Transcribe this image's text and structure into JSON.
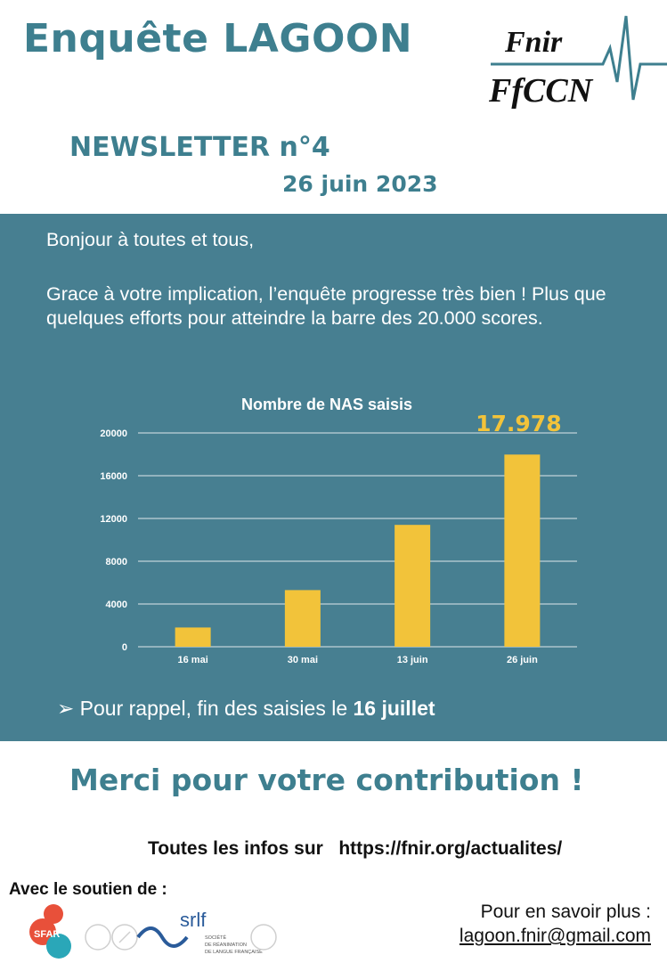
{
  "header": {
    "title": "Enquête LAGOON",
    "logo": {
      "line1": "Fnir",
      "line2": "FfCCN"
    }
  },
  "newsletter": {
    "label": "NEWSLETTER n°4",
    "date": "26 juin 2023"
  },
  "intro": {
    "greeting": "Bonjour à toutes et tous,",
    "body": "Grace à votre implication, l’enquête progresse très bien ! Plus que quelques efforts pour atteindre la barre des 20.000 scores."
  },
  "chart_data": {
    "type": "bar",
    "title": "Nombre de NAS saisis",
    "categories": [
      "16 mai",
      "30 mai",
      "13 juin",
      "26 juin"
    ],
    "values": [
      1800,
      5300,
      11400,
      17978
    ],
    "ylim": [
      0,
      20000
    ],
    "yticks": [
      0,
      4000,
      8000,
      12000,
      16000,
      20000
    ],
    "grid": true,
    "callout": "17.978",
    "colors": {
      "bar": "#f2c33a",
      "grid": "#dfe7ea",
      "text": "#ffffff",
      "callout": "#f2c33a"
    }
  },
  "reminder": {
    "arrow": "➢",
    "text": "Pour rappel, fin des saisies le ",
    "date": "16 juillet"
  },
  "thanks": "Merci pour votre contribution !",
  "infos": {
    "label": "Toutes les infos sur",
    "url": "https://fnir.org/actualites/"
  },
  "support": {
    "label": "Avec le soutien de :",
    "sponsors": [
      "SFAR",
      "srlf"
    ],
    "srlf_caption": [
      "SOCIÉTÉ",
      "DE RÉANIMATION",
      "DE LANGUE FRANÇAISE"
    ]
  },
  "contact": {
    "label": "Pour en savoir plus :",
    "email": "lagoon.fnir@gmail.com"
  },
  "colors": {
    "teal": "#3e7f8f",
    "panel": "#477f91",
    "accent": "#f2c33a"
  }
}
